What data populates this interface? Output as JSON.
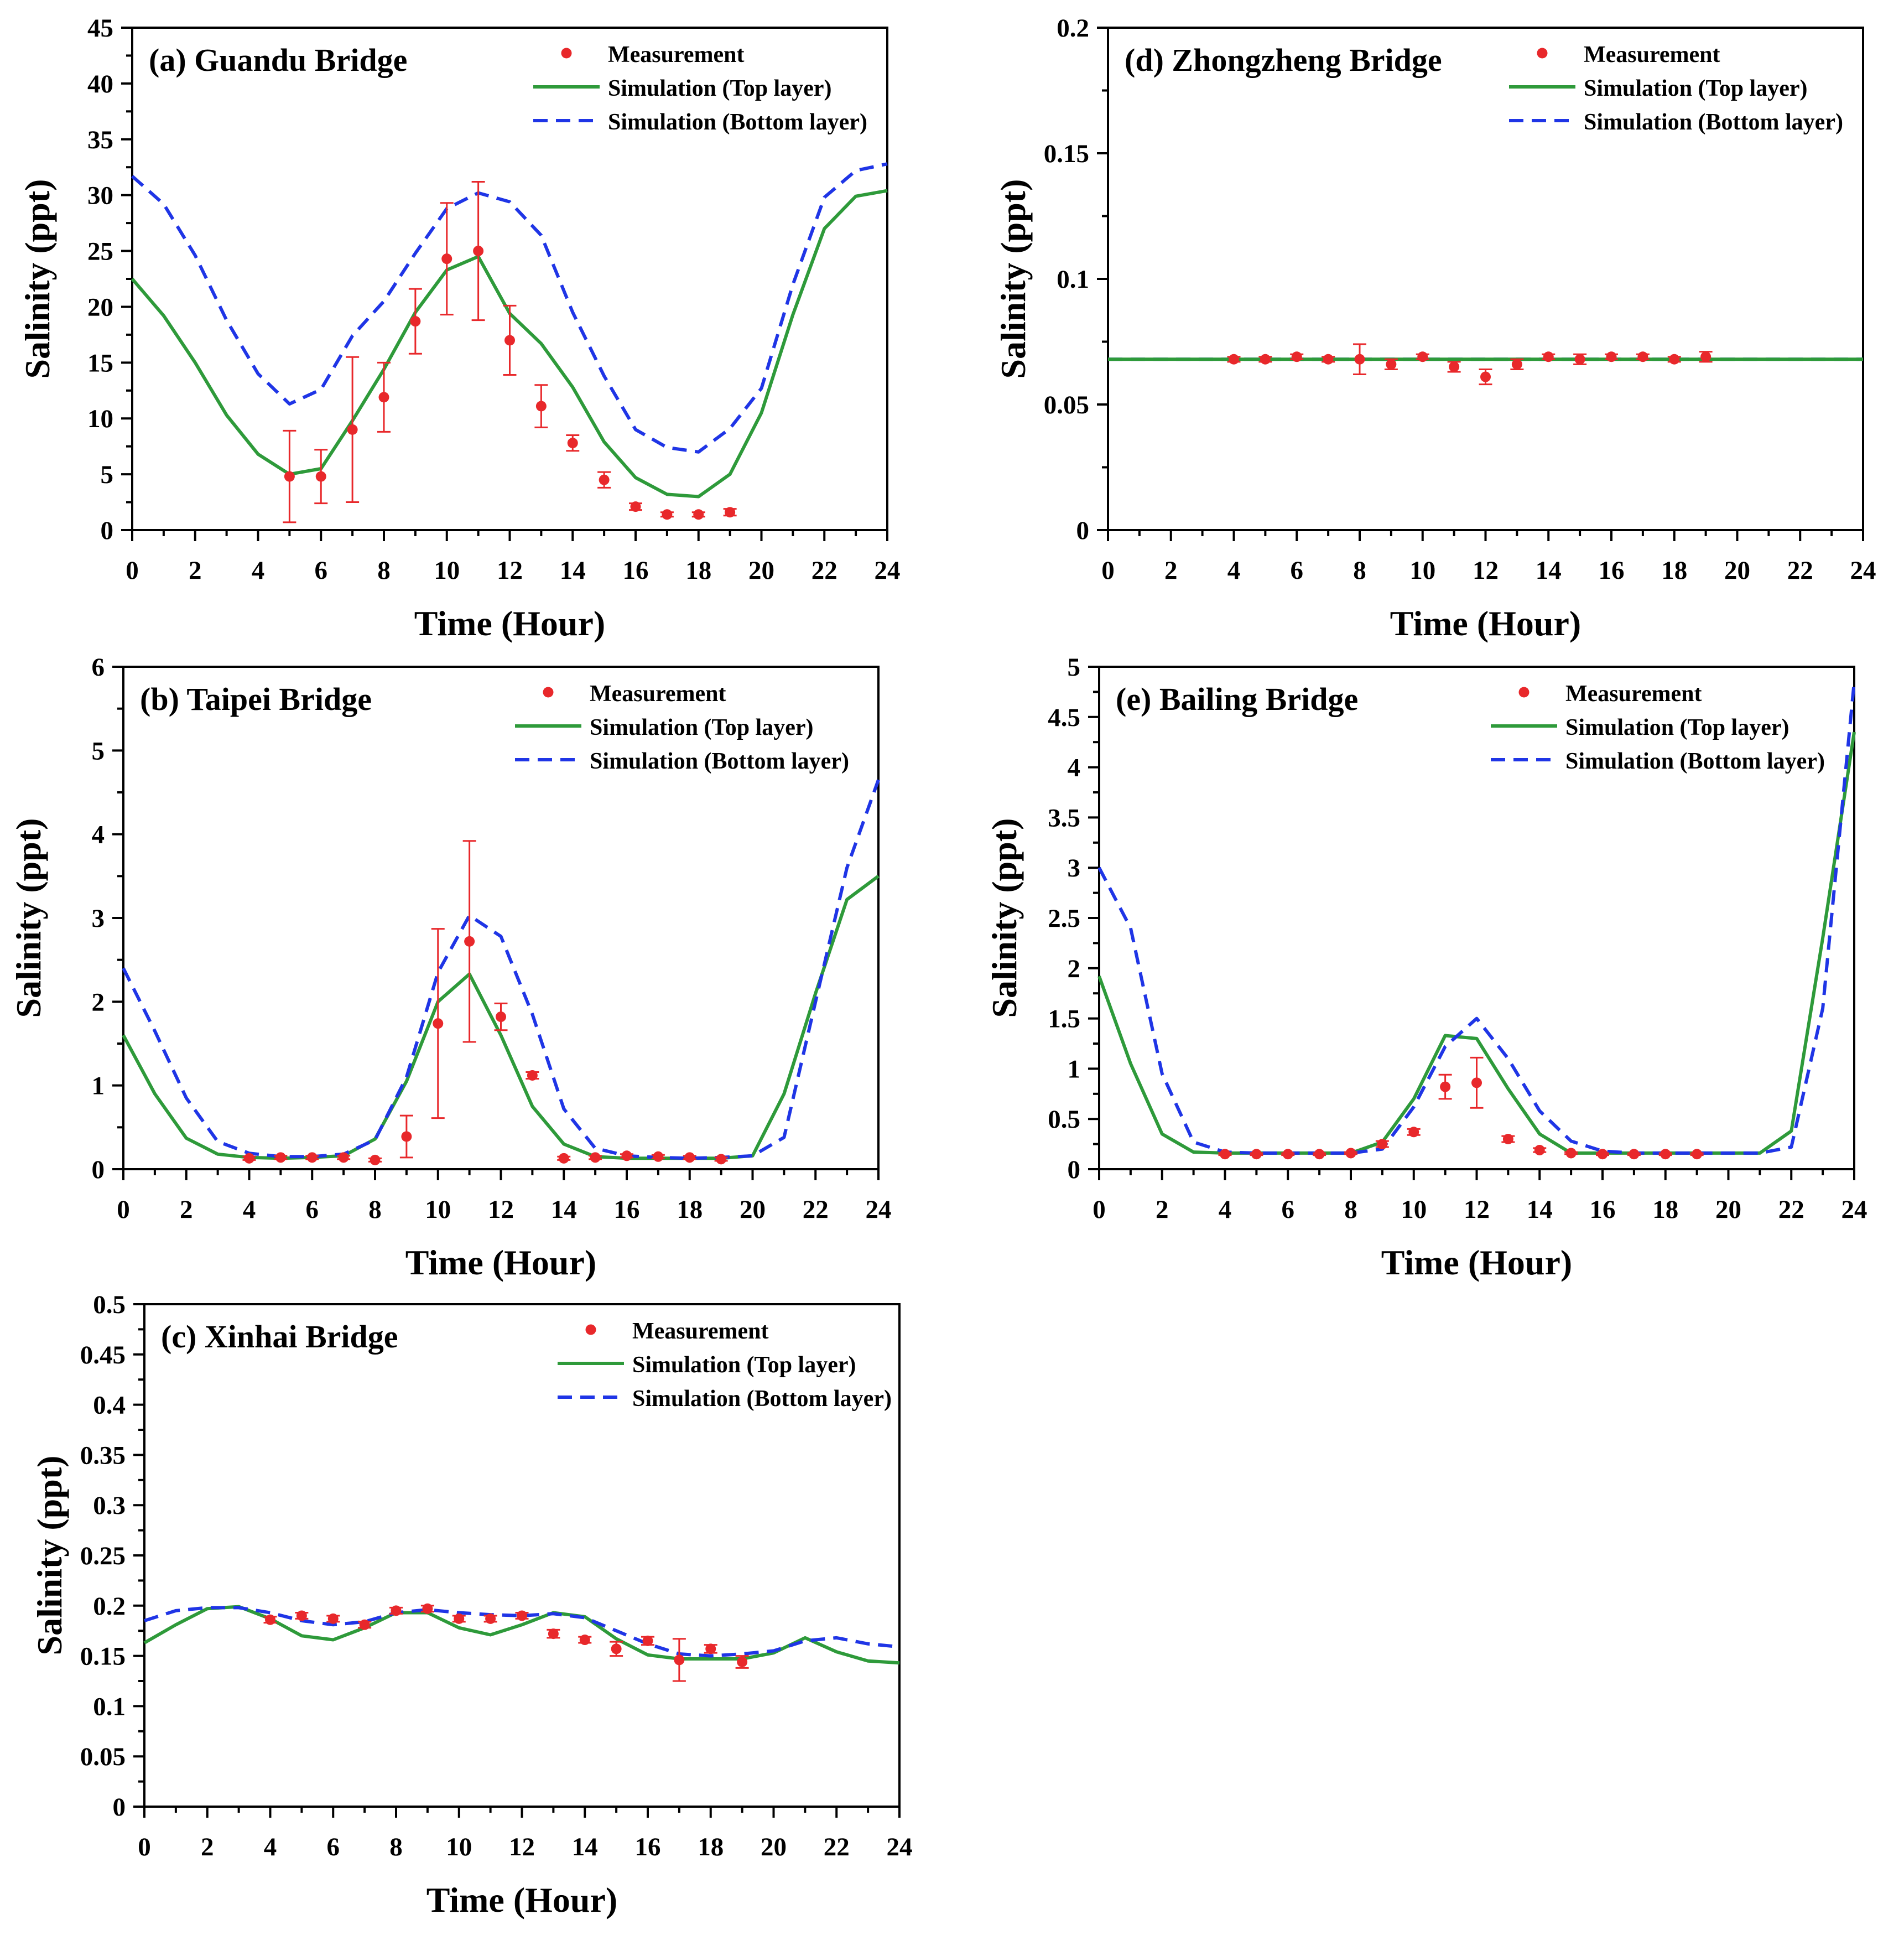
{
  "chart_data": [
    {
      "id": "a",
      "type": "line",
      "title": "(a) Guandu Bridge",
      "xlabel": "Time (Hour)",
      "ylabel": "Salinity (ppt)",
      "xlim": [
        0,
        24
      ],
      "ylim": [
        0,
        45
      ],
      "xticks": [
        0,
        2,
        4,
        6,
        8,
        10,
        12,
        14,
        16,
        18,
        20,
        22,
        24
      ],
      "xtick_labels": [
        "0",
        "2",
        "4",
        "6",
        "8",
        "10",
        "12",
        "14",
        "16",
        "18",
        "20",
        "22",
        "24"
      ],
      "yticks": [
        0,
        5,
        10,
        15,
        20,
        25,
        30,
        35,
        40,
        45
      ],
      "ytick_labels": [
        "0",
        "5",
        "10",
        "15",
        "20",
        "25",
        "30",
        "35",
        "40",
        "45"
      ],
      "legend": [
        "Measurement",
        "Simulation (Top layer)",
        "Simulation (Bottom layer)"
      ],
      "series": [
        {
          "name": "Simulation (Top layer)",
          "style": "solid",
          "color": "#2e9a3a",
          "x": [
            0,
            1,
            2,
            3,
            4,
            5,
            6,
            7,
            8,
            9,
            10,
            11,
            12,
            13,
            14,
            15,
            16,
            17,
            18,
            19,
            20,
            21,
            22,
            23,
            24
          ],
          "values": [
            22.5,
            19.2,
            15,
            10.3,
            6.8,
            5,
            5.5,
            9.8,
            14.4,
            19.5,
            23.3,
            24.5,
            19.4,
            16.7,
            12.8,
            7.9,
            4.7,
            3.2,
            3,
            5,
            10.5,
            19.3,
            27,
            29.9,
            30.4
          ]
        },
        {
          "name": "Simulation (Bottom layer)",
          "style": "dashed",
          "color": "#1f35e6",
          "x": [
            0,
            1,
            2,
            3,
            4,
            5,
            6,
            7,
            8,
            9,
            10,
            11,
            12,
            13,
            14,
            15,
            16,
            17,
            18,
            19,
            20,
            21,
            22,
            23,
            24
          ],
          "values": [
            31.7,
            29.2,
            24.6,
            18.8,
            14,
            11.3,
            12.6,
            17.4,
            20.5,
            24.8,
            28.8,
            30.2,
            29.4,
            26.4,
            19.5,
            13.8,
            9,
            7.4,
            7,
            9.1,
            12.7,
            22,
            29.8,
            32.2,
            32.8
          ]
        },
        {
          "name": "Measurement",
          "style": "points",
          "color": "#e8282b",
          "x": [
            5,
            6,
            7,
            8,
            9,
            10,
            11,
            12,
            13,
            14,
            15,
            16,
            17,
            18,
            19
          ],
          "values": [
            4.8,
            4.8,
            9,
            11.9,
            18.7,
            24.3,
            25,
            17,
            11.1,
            7.8,
            4.5,
            2.1,
            1.4,
            1.4,
            1.6
          ],
          "err": [
            4.1,
            2.4,
            6.5,
            3.1,
            2.9,
            5,
            6.2,
            3.1,
            1.9,
            0.7,
            0.7,
            0.3,
            0.2,
            0.2,
            0.3
          ]
        }
      ]
    },
    {
      "id": "b",
      "type": "line",
      "title": "(b) Taipei Bridge",
      "xlabel": "Time (Hour)",
      "ylabel": "Salinity (ppt)",
      "xlim": [
        0,
        24
      ],
      "ylim": [
        0,
        6
      ],
      "xticks": [
        0,
        2,
        4,
        6,
        8,
        10,
        12,
        14,
        16,
        18,
        20,
        22,
        24
      ],
      "xtick_labels": [
        "0",
        "2",
        "4",
        "6",
        "8",
        "10",
        "12",
        "14",
        "16",
        "18",
        "20",
        "22",
        "24"
      ],
      "yticks": [
        0,
        1,
        2,
        3,
        4,
        5,
        6
      ],
      "ytick_labels": [
        "0",
        "1",
        "2",
        "3",
        "4",
        "5",
        "6"
      ],
      "legend": [
        "Measurement",
        "Simulation (Top layer)",
        "Simulation (Bottom layer)"
      ],
      "series": [
        {
          "name": "Simulation (Top layer)",
          "style": "solid",
          "color": "#2e9a3a",
          "x": [
            0,
            1,
            2,
            3,
            4,
            5,
            6,
            7,
            8,
            9,
            10,
            11,
            12,
            13,
            14,
            15,
            16,
            17,
            18,
            19,
            20,
            21,
            22,
            23,
            24
          ],
          "values": [
            1.6,
            0.9,
            0.37,
            0.18,
            0.14,
            0.13,
            0.14,
            0.16,
            0.36,
            1.05,
            2.0,
            2.33,
            1.6,
            0.75,
            0.3,
            0.15,
            0.13,
            0.13,
            0.13,
            0.13,
            0.16,
            0.9,
            2.1,
            3.22,
            3.5
          ]
        },
        {
          "name": "Simulation (Bottom layer)",
          "style": "dashed",
          "color": "#1f35e6",
          "x": [
            0,
            1,
            2,
            3,
            4,
            5,
            6,
            7,
            8,
            9,
            10,
            11,
            12,
            13,
            14,
            15,
            16,
            17,
            18,
            19,
            20,
            21,
            22,
            23,
            24
          ],
          "values": [
            2.4,
            1.65,
            0.85,
            0.33,
            0.19,
            0.15,
            0.15,
            0.18,
            0.35,
            1.1,
            2.35,
            3.03,
            2.78,
            1.85,
            0.72,
            0.25,
            0.16,
            0.14,
            0.13,
            0.14,
            0.16,
            0.38,
            2.0,
            3.6,
            4.65
          ]
        },
        {
          "name": "Measurement",
          "style": "points",
          "color": "#e8282b",
          "x": [
            4,
            5,
            6,
            7,
            8,
            9,
            10,
            11,
            12,
            13,
            14,
            15,
            16,
            17,
            18,
            19
          ],
          "values": [
            0.13,
            0.14,
            0.14,
            0.14,
            0.11,
            0.39,
            1.74,
            2.72,
            1.82,
            1.12,
            0.13,
            0.14,
            0.16,
            0.15,
            0.14,
            0.12
          ],
          "err": [
            0.02,
            0.02,
            0.02,
            0.02,
            0.02,
            0.25,
            1.13,
            1.2,
            0.16,
            0.04,
            0.02,
            0.02,
            0.02,
            0.02,
            0.02,
            0.02
          ]
        }
      ]
    },
    {
      "id": "c",
      "type": "line",
      "title": "(c) Xinhai Bridge",
      "xlabel": "Time (Hour)",
      "ylabel": "Salinity (ppt)",
      "xlim": [
        0,
        24
      ],
      "ylim": [
        0,
        0.5
      ],
      "xticks": [
        0,
        2,
        4,
        6,
        8,
        10,
        12,
        14,
        16,
        18,
        20,
        22,
        24
      ],
      "xtick_labels": [
        "0",
        "2",
        "4",
        "6",
        "8",
        "10",
        "12",
        "14",
        "16",
        "18",
        "20",
        "22",
        "24"
      ],
      "yticks": [
        0,
        0.05,
        0.1,
        0.15,
        0.2,
        0.25,
        0.3,
        0.35,
        0.4,
        0.45,
        0.5
      ],
      "ytick_labels": [
        "0",
        "0.05",
        "0.1",
        "0.15",
        "0.2",
        "0.25",
        "0.3",
        "0.35",
        "0.4",
        "0.45",
        "0.5"
      ],
      "legend": [
        "Measurement",
        "Simulation (Top layer)",
        "Simulation (Bottom layer)"
      ],
      "series": [
        {
          "name": "Simulation (Top layer)",
          "style": "solid",
          "color": "#2e9a3a",
          "x": [
            0,
            1,
            2,
            3,
            4,
            5,
            6,
            7,
            8,
            9,
            10,
            11,
            12,
            13,
            14,
            15,
            16,
            17,
            18,
            19,
            20,
            21,
            22,
            23,
            24
          ],
          "values": [
            0.163,
            0.181,
            0.197,
            0.199,
            0.187,
            0.17,
            0.166,
            0.178,
            0.193,
            0.193,
            0.178,
            0.171,
            0.181,
            0.193,
            0.189,
            0.167,
            0.151,
            0.147,
            0.147,
            0.147,
            0.153,
            0.168,
            0.154,
            0.145,
            0.143
          ]
        },
        {
          "name": "Simulation (Bottom layer)",
          "style": "dashed",
          "color": "#1f35e6",
          "x": [
            0,
            1,
            2,
            3,
            4,
            5,
            6,
            7,
            8,
            9,
            10,
            11,
            12,
            13,
            14,
            15,
            16,
            17,
            18,
            19,
            20,
            21,
            22,
            23,
            24
          ],
          "values": [
            0.185,
            0.195,
            0.198,
            0.198,
            0.193,
            0.185,
            0.181,
            0.184,
            0.193,
            0.196,
            0.193,
            0.191,
            0.19,
            0.192,
            0.188,
            0.175,
            0.162,
            0.152,
            0.15,
            0.152,
            0.155,
            0.165,
            0.168,
            0.162,
            0.159
          ]
        },
        {
          "name": "Measurement",
          "style": "points",
          "color": "#e8282b",
          "x": [
            4,
            5,
            6,
            7,
            8,
            9,
            10,
            11,
            12,
            13,
            14,
            15,
            16,
            17,
            18,
            19
          ],
          "values": [
            0.186,
            0.19,
            0.187,
            0.181,
            0.195,
            0.197,
            0.187,
            0.187,
            0.19,
            0.172,
            0.166,
            0.157,
            0.165,
            0.146,
            0.157,
            0.144
          ],
          "err": [
            0.003,
            0.003,
            0.003,
            0.003,
            0.003,
            0.003,
            0.003,
            0.003,
            0.003,
            0.004,
            0.003,
            0.007,
            0.004,
            0.021,
            0.004,
            0.006
          ]
        }
      ]
    },
    {
      "id": "d",
      "type": "line",
      "title": "(d) Zhongzheng Bridge",
      "xlabel": "Time (Hour)",
      "ylabel": "Salinity (ppt)",
      "xlim": [
        0,
        24
      ],
      "ylim": [
        0,
        0.2
      ],
      "xticks": [
        0,
        2,
        4,
        6,
        8,
        10,
        12,
        14,
        16,
        18,
        20,
        22,
        24
      ],
      "xtick_labels": [
        "0",
        "2",
        "4",
        "6",
        "8",
        "10",
        "12",
        "14",
        "16",
        "18",
        "20",
        "22",
        "24"
      ],
      "yticks": [
        0,
        0.05,
        0.1,
        0.15,
        0.2
      ],
      "ytick_labels": [
        "0",
        "0.05",
        "0.1",
        "0.15",
        "0.2"
      ],
      "legend": [
        "Measurement",
        "Simulation (Top layer)",
        "Simulation (Bottom layer)"
      ],
      "series": [
        {
          "name": "Simulation (Bottom layer)",
          "style": "dashed",
          "color": "#1f35e6",
          "x": [
            0,
            24
          ],
          "values": [
            0.068,
            0.068
          ]
        },
        {
          "name": "Simulation (Top layer)",
          "style": "solid",
          "color": "#2e9a3a",
          "x": [
            0,
            24
          ],
          "values": [
            0.068,
            0.068
          ]
        },
        {
          "name": "Measurement",
          "style": "points",
          "color": "#e8282b",
          "x": [
            4,
            5,
            6,
            7,
            8,
            9,
            10,
            11,
            12,
            13,
            14,
            15,
            16,
            17,
            18,
            19
          ],
          "values": [
            0.068,
            0.068,
            0.069,
            0.068,
            0.068,
            0.066,
            0.069,
            0.065,
            0.061,
            0.066,
            0.069,
            0.068,
            0.069,
            0.069,
            0.068,
            0.069
          ],
          "err": [
            0.001,
            0.001,
            0.001,
            0.001,
            0.006,
            0.002,
            0.001,
            0.002,
            0.003,
            0.002,
            0.001,
            0.002,
            0.001,
            0.001,
            0.001,
            0.002
          ]
        }
      ]
    },
    {
      "id": "e",
      "type": "line",
      "title": "(e) Bailing Bridge",
      "xlabel": "Time (Hour)",
      "ylabel": "Salinity (ppt)",
      "xlim": [
        0,
        24
      ],
      "ylim": [
        0,
        5
      ],
      "xticks": [
        0,
        2,
        4,
        6,
        8,
        10,
        12,
        14,
        16,
        18,
        20,
        22,
        24
      ],
      "xtick_labels": [
        "0",
        "2",
        "4",
        "6",
        "8",
        "10",
        "12",
        "14",
        "16",
        "18",
        "20",
        "22",
        "24"
      ],
      "yticks": [
        0,
        0.5,
        1,
        1.5,
        2,
        2.5,
        3,
        3.5,
        4,
        4.5,
        5
      ],
      "ytick_labels": [
        "0",
        "0.5",
        "1",
        "1.5",
        "2",
        "2.5",
        "3",
        "3.5",
        "4",
        "4.5",
        "5"
      ],
      "legend": [
        "Measurement",
        "Simulation (Top layer)",
        "Simulation (Bottom layer)"
      ],
      "series": [
        {
          "name": "Simulation (Top layer)",
          "style": "solid",
          "color": "#2e9a3a",
          "x": [
            0,
            1,
            2,
            3,
            4,
            5,
            6,
            7,
            8,
            9,
            10,
            11,
            12,
            13,
            14,
            15,
            16,
            17,
            18,
            19,
            20,
            21,
            22,
            23,
            24
          ],
          "values": [
            1.92,
            1.05,
            0.35,
            0.17,
            0.16,
            0.16,
            0.16,
            0.16,
            0.16,
            0.27,
            0.7,
            1.33,
            1.3,
            0.8,
            0.35,
            0.16,
            0.16,
            0.16,
            0.16,
            0.16,
            0.16,
            0.16,
            0.38,
            2.3,
            4.35
          ]
        },
        {
          "name": "Simulation (Bottom layer)",
          "style": "dashed",
          "color": "#1f35e6",
          "x": [
            0,
            1,
            2,
            3,
            4,
            5,
            6,
            7,
            8,
            9,
            10,
            11,
            12,
            13,
            14,
            15,
            16,
            17,
            18,
            19,
            20,
            21,
            22,
            23,
            24
          ],
          "values": [
            3.0,
            2.4,
            0.95,
            0.27,
            0.17,
            0.16,
            0.16,
            0.16,
            0.16,
            0.2,
            0.62,
            1.22,
            1.5,
            1.1,
            0.58,
            0.28,
            0.18,
            0.16,
            0.16,
            0.16,
            0.16,
            0.16,
            0.22,
            1.6,
            4.85
          ]
        },
        {
          "name": "Measurement",
          "style": "points",
          "color": "#e8282b",
          "x": [
            4,
            5,
            6,
            7,
            8,
            9,
            10,
            11,
            12,
            13,
            14,
            15,
            16,
            17,
            18,
            19
          ],
          "values": [
            0.15,
            0.15,
            0.15,
            0.15,
            0.16,
            0.25,
            0.37,
            0.82,
            0.86,
            0.3,
            0.19,
            0.16,
            0.15,
            0.15,
            0.15,
            0.15
          ],
          "err": [
            0.01,
            0.01,
            0.01,
            0.01,
            0.01,
            0.03,
            0.03,
            0.12,
            0.25,
            0.03,
            0.02,
            0.01,
            0.01,
            0.01,
            0.01,
            0.01
          ]
        }
      ]
    }
  ]
}
